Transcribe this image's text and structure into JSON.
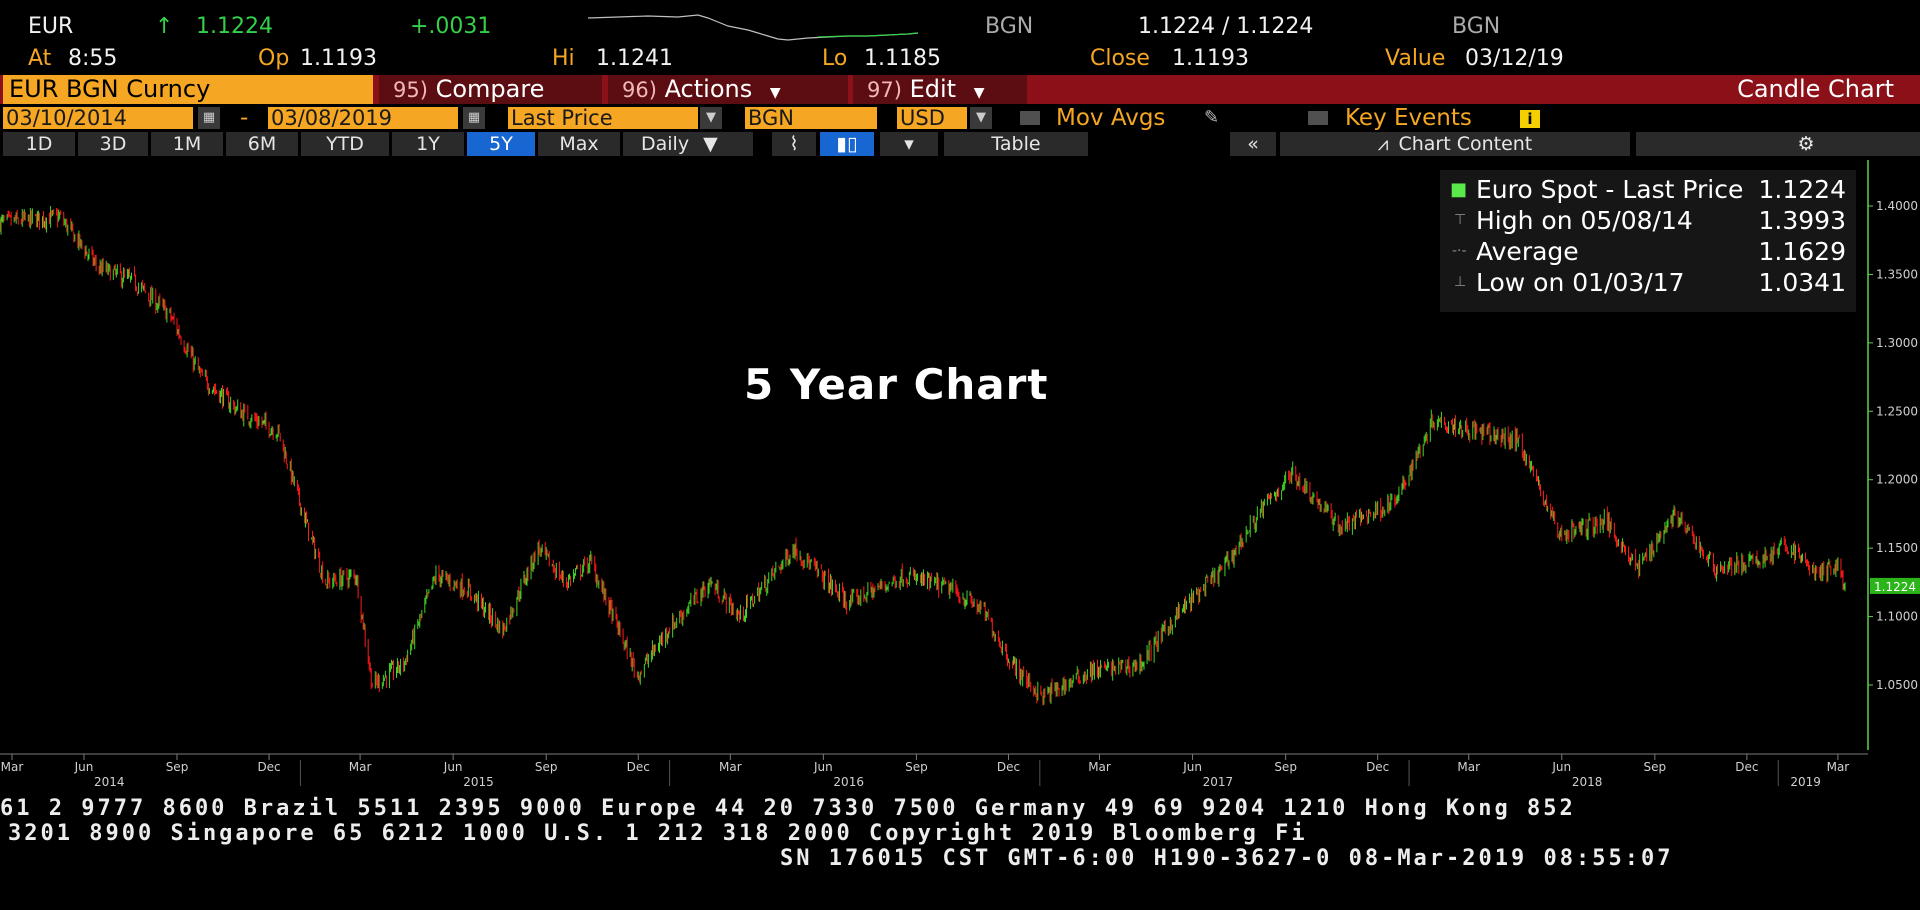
{
  "quote": {
    "symbol": "EUR",
    "arrow": "↑",
    "last": "1.1224",
    "change": "+.0031",
    "source1": "BGN",
    "bid_ask": "1.1224 / 1.1224",
    "source2": "BGN",
    "at_label": "At",
    "at_value": "8:55",
    "op_label": "Op",
    "op_value": "1.1193",
    "hi_label": "Hi",
    "hi_value": "1.1241",
    "lo_label": "Lo",
    "lo_value": "1.1185",
    "close_label": "Close",
    "close_value": "1.1193",
    "value_label": "Value",
    "value_value": "03/12/19"
  },
  "toolbar": {
    "security": "EUR BGN Curncy",
    "compare_num": "95)",
    "compare_label": "Compare",
    "actions_num": "96)",
    "actions_label": "Actions",
    "edit_num": "97)",
    "edit_label": "Edit",
    "chart_type": "Candle Chart"
  },
  "options": {
    "start_date": "03/10/2014",
    "dash": "-",
    "end_date": "03/08/2019",
    "field": "Last Price",
    "source": "BGN",
    "currency": "USD",
    "mov_avgs": "Mov Avgs",
    "key_events": "Key Events",
    "info": "i"
  },
  "ranges": {
    "items": [
      "1D",
      "3D",
      "1M",
      "6M",
      "YTD",
      "1Y",
      "5Y",
      "Max"
    ],
    "active": "5Y",
    "period": "Daily",
    "table": "Table",
    "collapse": "«",
    "chart_content": "Chart Content"
  },
  "legend": {
    "r1_label": "Euro Spot - Last Price",
    "r1_value": "1.1224",
    "r2_label": "High on 05/08/14",
    "r2_value": "1.3993",
    "r3_label": "Average",
    "r3_value": "1.1629",
    "r4_label": "Low on 01/03/17",
    "r4_value": "1.0341"
  },
  "chart_title": "5 Year Chart",
  "colors": {
    "up": "#42d428",
    "down": "#ff1a1a",
    "axis": "#5bd14a",
    "orange": "#f5a623",
    "toolbar_red": "#8b1018",
    "active_blue": "#1766d1"
  },
  "chart_data": {
    "type": "candlestick",
    "title": "5 Year Chart",
    "ylim": [
      1.0,
      1.43
    ],
    "y_ticks": [
      "1.4000",
      "1.3500",
      "1.3000",
      "1.2500",
      "1.2000",
      "1.1500",
      "1.1000",
      "1.0500"
    ],
    "last_price_tag": "1.1224",
    "x_month_labels": [
      "Mar",
      "Jun",
      "Sep",
      "Dec",
      "Mar",
      "Jun",
      "Sep",
      "Dec",
      "Mar",
      "Jun",
      "Sep",
      "Dec",
      "Mar",
      "Jun",
      "Sep",
      "Dec",
      "Mar",
      "Jun",
      "Sep",
      "Dec",
      "Mar"
    ],
    "x_year_labels": [
      "2014",
      "2015",
      "2016",
      "2017",
      "2018",
      "2019"
    ],
    "x_range": [
      "2014-03-10",
      "2019-03-08"
    ],
    "close_path": [
      {
        "date": "2014-03-10",
        "value": 1.388
      },
      {
        "date": "2014-05-08",
        "value": 1.392
      },
      {
        "date": "2014-06-15",
        "value": 1.355
      },
      {
        "date": "2014-07-20",
        "value": 1.345
      },
      {
        "date": "2014-08-25",
        "value": 1.32
      },
      {
        "date": "2014-09-25",
        "value": 1.275
      },
      {
        "date": "2014-11-01",
        "value": 1.25
      },
      {
        "date": "2014-12-10",
        "value": 1.235
      },
      {
        "date": "2015-01-10",
        "value": 1.16
      },
      {
        "date": "2015-01-26",
        "value": 1.125
      },
      {
        "date": "2015-02-25",
        "value": 1.13
      },
      {
        "date": "2015-03-13",
        "value": 1.05
      },
      {
        "date": "2015-04-13",
        "value": 1.065
      },
      {
        "date": "2015-05-15",
        "value": 1.13
      },
      {
        "date": "2015-06-15",
        "value": 1.12
      },
      {
        "date": "2015-07-20",
        "value": 1.09
      },
      {
        "date": "2015-08-24",
        "value": 1.15
      },
      {
        "date": "2015-09-20",
        "value": 1.125
      },
      {
        "date": "2015-10-15",
        "value": 1.14
      },
      {
        "date": "2015-11-30",
        "value": 1.057
      },
      {
        "date": "2015-12-30",
        "value": 1.09
      },
      {
        "date": "2016-02-10",
        "value": 1.125
      },
      {
        "date": "2016-03-10",
        "value": 1.1
      },
      {
        "date": "2016-05-03",
        "value": 1.15
      },
      {
        "date": "2016-06-25",
        "value": 1.11
      },
      {
        "date": "2016-08-20",
        "value": 1.13
      },
      {
        "date": "2016-10-05",
        "value": 1.12
      },
      {
        "date": "2016-11-05",
        "value": 1.105
      },
      {
        "date": "2016-12-05",
        "value": 1.065
      },
      {
        "date": "2017-01-03",
        "value": 1.041
      },
      {
        "date": "2017-02-20",
        "value": 1.06
      },
      {
        "date": "2017-04-10",
        "value": 1.065
      },
      {
        "date": "2017-05-15",
        "value": 1.1
      },
      {
        "date": "2017-07-01",
        "value": 1.135
      },
      {
        "date": "2017-08-10",
        "value": 1.18
      },
      {
        "date": "2017-09-08",
        "value": 1.205
      },
      {
        "date": "2017-10-25",
        "value": 1.165
      },
      {
        "date": "2017-12-20",
        "value": 1.185
      },
      {
        "date": "2018-01-25",
        "value": 1.245
      },
      {
        "date": "2018-03-10",
        "value": 1.235
      },
      {
        "date": "2018-04-20",
        "value": 1.228
      },
      {
        "date": "2018-05-30",
        "value": 1.16
      },
      {
        "date": "2018-07-15",
        "value": 1.17
      },
      {
        "date": "2018-08-15",
        "value": 1.135
      },
      {
        "date": "2018-09-20",
        "value": 1.175
      },
      {
        "date": "2018-10-31",
        "value": 1.135
      },
      {
        "date": "2018-12-10",
        "value": 1.14
      },
      {
        "date": "2019-01-10",
        "value": 1.152
      },
      {
        "date": "2019-02-10",
        "value": 1.13
      },
      {
        "date": "2019-02-28",
        "value": 1.138
      },
      {
        "date": "2019-03-08",
        "value": 1.1224
      }
    ]
  },
  "footer": {
    "line1": "61 2 9777 8600 Brazil 5511 2395 9000 Europe 44 20 7330 7500 Germany 49 69 9204 1210 Hong Kong 852",
    "line2": "3201 8900        Singapore 65 6212 1000      U.S. 1 212 318 2000           Copyright 2019 Bloomberg Fi",
    "line3": "SN 176015 CST  GMT-6:00 H190-3627-0 08-Mar-2019 08:55:07"
  }
}
